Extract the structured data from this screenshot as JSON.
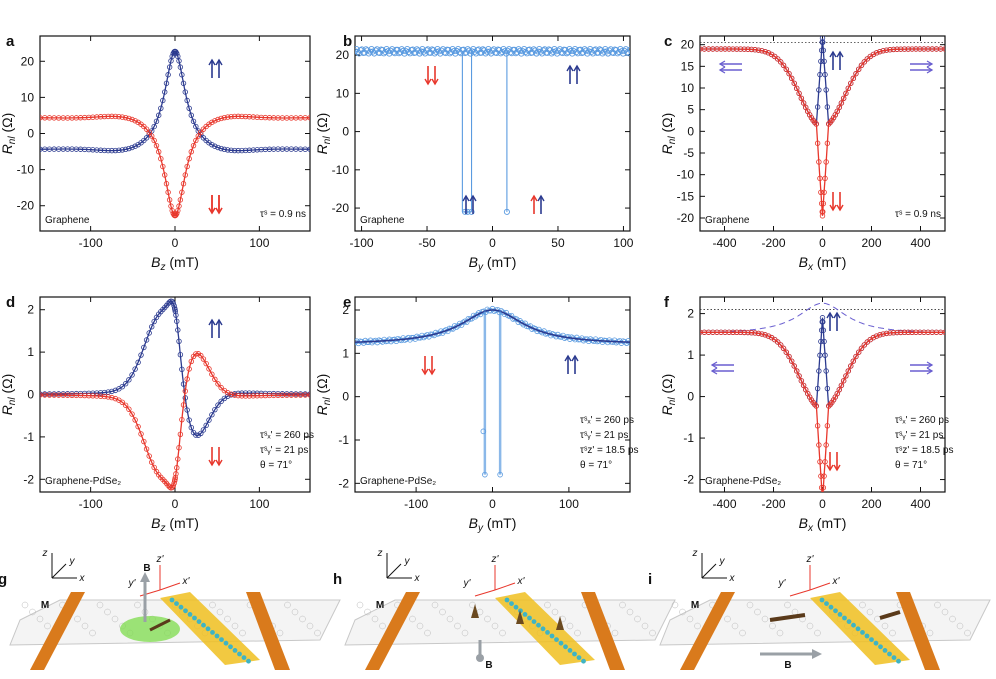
{
  "colors": {
    "red": "#e8372c",
    "blue": "#2b3a8f",
    "light_blue": "#5b9be0",
    "purple": "#6a5fd0",
    "orange": "#d97a1c",
    "green": "#7ddc4c",
    "gold": "#f0c020",
    "teal": "#3fb4c4",
    "grey": "#9aa0a6"
  },
  "chart_data": [
    {
      "panel": "a",
      "type": "line",
      "xlabel": "B",
      "xsub": "z",
      "xunit": " (mT)",
      "ylabel": "R",
      "ysub": "nl",
      "yunit": " (Ω)",
      "xlim": [
        -160,
        160
      ],
      "ylim": [
        -27,
        27
      ],
      "xticks": [
        {
          "v": -100,
          "t": "-100"
        },
        {
          "v": 0,
          "t": "0"
        },
        {
          "v": 100,
          "t": "100"
        }
      ],
      "yticks": [
        {
          "v": -20,
          "t": "-20"
        },
        {
          "v": -10,
          "t": "-10"
        },
        {
          "v": 0,
          "t": "0"
        },
        {
          "v": 10,
          "t": "10"
        },
        {
          "v": 20,
          "t": "20"
        }
      ],
      "model": "hanle_z",
      "params": {
        "amp": 23,
        "w": 15
      },
      "series": [
        {
          "name": "parallel",
          "color": "#2b3a8f"
        },
        {
          "name": "antiparallel",
          "color": "#e8372c"
        }
      ],
      "label": "Graphene",
      "annotations": [
        "τˢ = 0.9 ns"
      ]
    },
    {
      "panel": "b",
      "type": "line",
      "xlabel": "B",
      "xsub": "y",
      "xunit": " (mT)",
      "ylabel": "R",
      "ysub": "nl",
      "yunit": " (Ω)",
      "xlim": [
        -105,
        105
      ],
      "ylim": [
        -26,
        25
      ],
      "xticks": [
        {
          "v": -100,
          "t": "-100"
        },
        {
          "v": -50,
          "t": "-50"
        },
        {
          "v": 0,
          "t": "0"
        },
        {
          "v": 50,
          "t": "50"
        },
        {
          "v": 100,
          "t": "100"
        }
      ],
      "yticks": [
        {
          "v": -20,
          "t": "-20"
        },
        {
          "v": -10,
          "t": "-10"
        },
        {
          "v": 0,
          "t": "0"
        },
        {
          "v": 10,
          "t": "10"
        },
        {
          "v": 20,
          "t": "20"
        }
      ],
      "model": "switch",
      "params": {
        "level": 21,
        "low": -21,
        "sw": [
          -23,
          -16,
          11
        ]
      },
      "series": [
        {
          "name": "sweep",
          "color": "#5b9be0"
        }
      ],
      "label": "Graphene",
      "annotations": []
    },
    {
      "panel": "c",
      "type": "line",
      "xlabel": "B",
      "xsub": "x",
      "xunit": " (mT)",
      "ylabel": "R",
      "ysub": "nl",
      "yunit": " (Ω)",
      "xlim": [
        -500,
        500
      ],
      "ylim": [
        -23,
        22
      ],
      "xticks": [
        {
          "v": -400,
          "t": "-400"
        },
        {
          "v": -200,
          "t": "-200"
        },
        {
          "v": 0,
          "t": "0"
        },
        {
          "v": 200,
          "t": "200"
        },
        {
          "v": 400,
          "t": "400"
        }
      ],
      "yticks": [
        {
          "v": -20,
          "t": "-20"
        },
        {
          "v": -15,
          "t": "-15"
        },
        {
          "v": -10,
          "t": "-10"
        },
        {
          "v": -5,
          "t": "-5"
        },
        {
          "v": 0,
          "t": "0"
        },
        {
          "v": 5,
          "t": "5"
        },
        {
          "v": 10,
          "t": "10"
        },
        {
          "v": 15,
          "t": "15"
        },
        {
          "v": 20,
          "t": "20"
        }
      ],
      "model": "hanle_x",
      "params": {
        "sat": 19,
        "dip": 0,
        "amp": 20.5
      },
      "series": [
        {
          "name": "parallel",
          "color": "#2b3a8f"
        },
        {
          "name": "antiparallel",
          "color": "#e8372c"
        }
      ],
      "label": "Graphene",
      "annotations": [
        "τˢ = 0.9 ns"
      ]
    },
    {
      "panel": "d",
      "type": "line",
      "xlabel": "B",
      "xsub": "z",
      "xunit": " (mT)",
      "ylabel": "R",
      "ysub": "nl",
      "yunit": " (Ω)",
      "xlim": [
        -160,
        160
      ],
      "ylim": [
        -2.3,
        2.3
      ],
      "xticks": [
        {
          "v": -100,
          "t": "-100"
        },
        {
          "v": 0,
          "t": "0"
        },
        {
          "v": 100,
          "t": "100"
        }
      ],
      "yticks": [
        {
          "v": -2,
          "t": "-2"
        },
        {
          "v": -1,
          "t": "-1"
        },
        {
          "v": 0,
          "t": "0"
        },
        {
          "v": 1,
          "t": "1"
        },
        {
          "v": 2,
          "t": "2"
        }
      ],
      "model": "asym_z",
      "params": {
        "amp": 2.0
      },
      "series": [
        {
          "name": "parallel",
          "color": "#2b3a8f"
        },
        {
          "name": "antiparallel",
          "color": "#e8372c"
        }
      ],
      "label": "Graphene-PdSe₂",
      "annotations": [
        "τˢₓ' = 260 ps",
        "τˢᵧ' = 21 ps",
        "θ = 71°"
      ]
    },
    {
      "panel": "e",
      "type": "line",
      "xlabel": "B",
      "xsub": "y",
      "xunit": " (mT)",
      "ylabel": "R",
      "ysub": "nl",
      "yunit": " (Ω)",
      "xlim": [
        -180,
        180
      ],
      "ylim": [
        -2.2,
        2.3
      ],
      "xticks": [
        {
          "v": -100,
          "t": "-100"
        },
        {
          "v": 0,
          "t": "0"
        },
        {
          "v": 100,
          "t": "100"
        }
      ],
      "yticks": [
        {
          "v": -2,
          "t": "-2"
        },
        {
          "v": -1,
          "t": "-1"
        },
        {
          "v": 0,
          "t": "0"
        },
        {
          "v": 1,
          "t": "1"
        },
        {
          "v": 2,
          "t": "2"
        }
      ],
      "model": "peak_switch",
      "params": {
        "base": 1.2,
        "peak": 2.0,
        "low": -1.8,
        "sw": [
          -10,
          10
        ]
      },
      "series": [
        {
          "name": "sweep",
          "color": "#5b9be0"
        },
        {
          "name": "fit",
          "color": "#2b3a8f"
        }
      ],
      "label": "Graphene-PdSe₂",
      "annotations": [
        "τˢₓ' = 260 ps",
        "τˢᵧ' = 21 ps",
        "τˢz' = 18.5 ps",
        "θ = 71°"
      ]
    },
    {
      "panel": "f",
      "type": "line",
      "xlabel": "B",
      "xsub": "x",
      "xunit": " (mT)",
      "ylabel": "R",
      "ysub": "nl",
      "yunit": " (Ω)",
      "xlim": [
        -500,
        500
      ],
      "ylim": [
        -2.3,
        2.4
      ],
      "xticks": [
        {
          "v": -400,
          "t": "-400"
        },
        {
          "v": -200,
          "t": "-200"
        },
        {
          "v": 0,
          "t": "0"
        },
        {
          "v": 200,
          "t": "200"
        },
        {
          "v": 400,
          "t": "400"
        }
      ],
      "yticks": [
        {
          "v": -2,
          "t": "-2"
        },
        {
          "v": -1,
          "t": "-1"
        },
        {
          "v": 0,
          "t": "0"
        },
        {
          "v": 1,
          "t": "1"
        },
        {
          "v": 2,
          "t": "2"
        }
      ],
      "model": "hanle_x2",
      "params": {
        "sat": 1.55,
        "amp": 2.0
      },
      "series": [
        {
          "name": "parallel",
          "color": "#2b3a8f"
        },
        {
          "name": "antiparallel",
          "color": "#e8372c"
        }
      ],
      "label": "Graphene-PdSe₂",
      "annotations": [
        "τˢₓ' = 260 ps",
        "τˢᵧ' = 21 ps",
        "τˢz' = 18.5 ps",
        "θ = 71°"
      ]
    }
  ],
  "schematics": [
    {
      "panel": "g",
      "axes": [
        "z",
        "y",
        "x"
      ],
      "primed": [
        "z'",
        "y'",
        "x'"
      ],
      "m_label": "M",
      "b_label": "B"
    },
    {
      "panel": "h",
      "axes": [
        "z",
        "y",
        "x"
      ],
      "primed": [
        "z'",
        "y'",
        "x'"
      ],
      "m_label": "M",
      "b_label": "B"
    },
    {
      "panel": "i",
      "axes": [
        "z",
        "y",
        "x"
      ],
      "primed": [
        "z'",
        "y'",
        "x'"
      ],
      "m_label": "M",
      "b_label": "B"
    }
  ]
}
